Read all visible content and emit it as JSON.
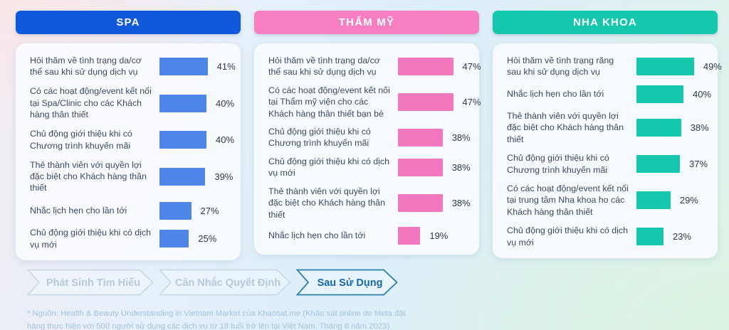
{
  "stage_nav": {
    "items": [
      {
        "label": "Phát Sinh Tìm Hiểu",
        "state": "inactive"
      },
      {
        "label": "Cân Nhắc Quyết Định",
        "state": "inactive"
      },
      {
        "label": "Sau Sử Dụng",
        "state": "active"
      }
    ],
    "active_text_color": "#1767A9",
    "active_border_color": "#2C7FA4",
    "inactive_text_color": "#B7C9D9",
    "inactive_border_color": "#C5D5E1"
  },
  "footnote": {
    "line1": "* Nguồn: Health & Beauty Understanding in Vietnam Market của Khaosat.me (Khảo sát online do Meta đặt",
    "line2": "hàng thực hiện với 500 người sử dụng các dịch vụ từ 18 tuổi trở lên tại Việt Nam. Tháng 6 năm 2023)"
  },
  "chart_data": [
    {
      "type": "bar",
      "orientation": "horizontal",
      "title": "SPA",
      "header_color": "#1159DB",
      "bar_color": "#4E86E8",
      "unit": "%",
      "xlim": [
        0,
        60
      ],
      "legend": false,
      "grid": false,
      "categories": [
        "Hỏi thăm về tình trạng da/cơ thể sau khi sử dụng dịch vụ",
        "Có các hoạt động/event kết nối tại Spa/Clinic cho các Khách hàng thân thiết",
        "Chủ động giới thiệu khi có Chương trình khuyến mãi",
        "Thẻ thành viên với quyền lợi đặc biệt cho Khách hàng thân thiết",
        "Nhắc lịch hẹn cho lần tới",
        "Chủ động giới thiệu khi có dịch vụ mới"
      ],
      "values": [
        41,
        40,
        40,
        39,
        27,
        25
      ],
      "value_labels": [
        "41%",
        "40%",
        "40%",
        "39%",
        "27%",
        "25%"
      ]
    },
    {
      "type": "bar",
      "orientation": "horizontal",
      "title": "THẨM MỸ",
      "header_color": "#F87EC2",
      "bar_color": "#F478BE",
      "unit": "%",
      "xlim": [
        0,
        60
      ],
      "legend": false,
      "grid": false,
      "categories": [
        "Hỏi thăm về tình trạng da/cơ thể sau khi sử dụng dịch vụ",
        "Có các hoạt động/event kết nối tại Thẩm mỹ viện cho các Khách hàng thân thiết bạn bè",
        "Chủ động giới thiệu khi có Chương trình khuyến mãi",
        "Chủ động giới thiệu khi có dịch vụ mới",
        "Thẻ thành viên với quyền lợi đặc biệt cho Khách hàng thân thiết",
        "Nhắc lịch hẹn cho lần tới"
      ],
      "values": [
        47,
        47,
        38,
        38,
        38,
        19
      ],
      "value_labels": [
        "47%",
        "47%",
        "38%",
        "38%",
        "38%",
        "19%"
      ]
    },
    {
      "type": "bar",
      "orientation": "horizontal",
      "title": "NHA KHOA",
      "header_color": "#15C7AC",
      "bar_color": "#15C7AC",
      "unit": "%",
      "xlim": [
        0,
        60
      ],
      "legend": false,
      "grid": false,
      "categories": [
        "Hỏi thăm về tình trạng răng sau khi sử dụng dịch vụ",
        "Nhắc lịch hẹn cho lần tới",
        "Thẻ thành viên với quyền lợi đặc biệt cho Khách hàng thân thiết",
        "Chủ động giới thiệu khi có Chương trình khuyến mãi",
        "Có các hoạt động/event kết nối tại trung tâm Nha khoa ho các Khách hàng thân thiết",
        "Chủ động giới thiệu khi có dịch vụ mới"
      ],
      "values": [
        49,
        40,
        38,
        37,
        29,
        23
      ],
      "value_labels": [
        "49%",
        "40%",
        "38%",
        "37%",
        "29%",
        "23%"
      ]
    }
  ]
}
